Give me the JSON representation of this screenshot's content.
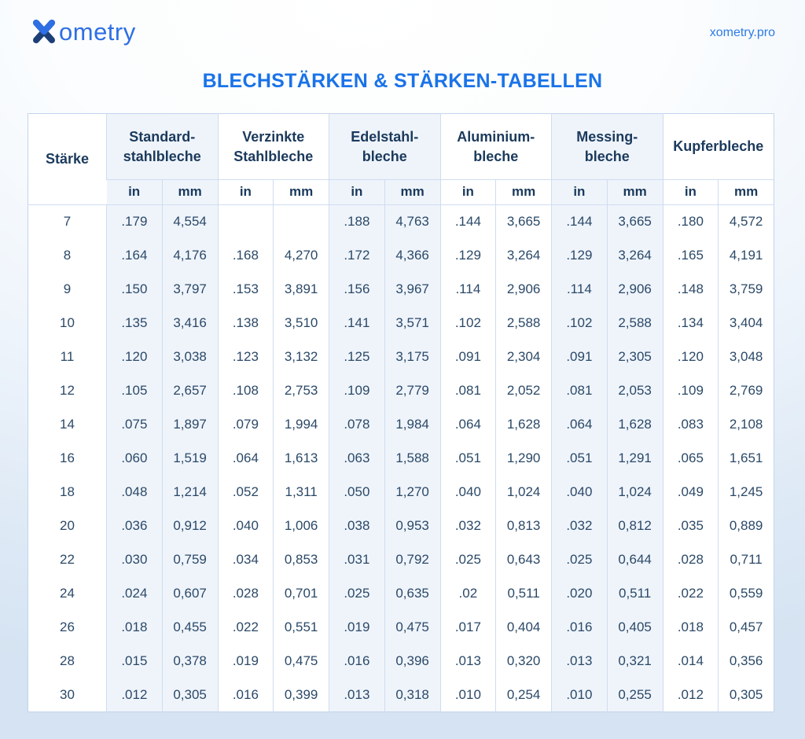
{
  "brand": {
    "logo_x": "X",
    "logo_text": "ometry",
    "site": "xometry.pro"
  },
  "title": "BLECHSTÄRKEN & STÄRKEN-TABELLEN",
  "colors": {
    "accent_blue": "#1a73e8",
    "link_blue": "#2e7be5",
    "header_navy": "#1b3a5c",
    "data_navy": "#2b4968",
    "tint_bg": "#eff4fb",
    "border": "#cfdcf0",
    "logo_blue": "#2e6fe4",
    "logo_navy": "#1d3f77"
  },
  "table": {
    "gauge_header": "Stärke",
    "unit_headers": [
      "in",
      "mm"
    ],
    "materials": [
      {
        "name": "Standard-stahlbleche",
        "line1": "Standard-",
        "line2": "stahlbleche",
        "tinted": true
      },
      {
        "name": "Verzinkte Stahlbleche",
        "line1": "Verzinkte",
        "line2": "Stahlbleche",
        "tinted": false
      },
      {
        "name": "Edelstahl-bleche",
        "line1": "Edelstahl-",
        "line2": "bleche",
        "tinted": true
      },
      {
        "name": "Aluminium-bleche",
        "line1": "Aluminium-",
        "line2": "bleche",
        "tinted": false
      },
      {
        "name": "Messing-bleche",
        "line1": "Messing-",
        "line2": "bleche",
        "tinted": true
      },
      {
        "name": "Kupferbleche",
        "line1": "Kupferbleche",
        "line2": "",
        "tinted": false
      }
    ],
    "rows": [
      {
        "gauge": "7",
        "values": [
          ".179",
          "4,554",
          "",
          "",
          ".188",
          "4,763",
          ".144",
          "3,665",
          ".144",
          "3,665",
          ".180",
          "4,572"
        ]
      },
      {
        "gauge": "8",
        "values": [
          ".164",
          "4,176",
          ".168",
          "4,270",
          ".172",
          "4,366",
          ".129",
          "3,264",
          ".129",
          "3,264",
          ".165",
          "4,191"
        ]
      },
      {
        "gauge": "9",
        "values": [
          ".150",
          "3,797",
          ".153",
          "3,891",
          ".156",
          "3,967",
          ".114",
          "2,906",
          ".114",
          "2,906",
          ".148",
          "3,759"
        ]
      },
      {
        "gauge": "10",
        "values": [
          ".135",
          "3,416",
          ".138",
          "3,510",
          ".141",
          "3,571",
          ".102",
          "2,588",
          ".102",
          "2,588",
          ".134",
          "3,404"
        ]
      },
      {
        "gauge": "11",
        "values": [
          ".120",
          "3,038",
          ".123",
          "3,132",
          ".125",
          "3,175",
          ".091",
          "2,304",
          ".091",
          "2,305",
          ".120",
          "3,048"
        ]
      },
      {
        "gauge": "12",
        "values": [
          ".105",
          "2,657",
          ".108",
          "2,753",
          ".109",
          "2,779",
          ".081",
          "2,052",
          ".081",
          "2,053",
          ".109",
          "2,769"
        ]
      },
      {
        "gauge": "14",
        "values": [
          ".075",
          "1,897",
          ".079",
          "1,994",
          ".078",
          "1,984",
          ".064",
          "1,628",
          ".064",
          "1,628",
          ".083",
          "2,108"
        ]
      },
      {
        "gauge": "16",
        "values": [
          ".060",
          "1,519",
          ".064",
          "1,613",
          ".063",
          "1,588",
          ".051",
          "1,290",
          ".051",
          "1,291",
          ".065",
          "1,651"
        ]
      },
      {
        "gauge": "18",
        "values": [
          ".048",
          "1,214",
          ".052",
          "1,311",
          ".050",
          "1,270",
          ".040",
          "1,024",
          ".040",
          "1,024",
          ".049",
          "1,245"
        ]
      },
      {
        "gauge": "20",
        "values": [
          ".036",
          "0,912",
          ".040",
          "1,006",
          ".038",
          "0,953",
          ".032",
          "0,813",
          ".032",
          "0,812",
          ".035",
          "0,889"
        ]
      },
      {
        "gauge": "22",
        "values": [
          ".030",
          "0,759",
          ".034",
          "0,853",
          ".031",
          "0,792",
          ".025",
          "0,643",
          ".025",
          "0,644",
          ".028",
          "0,711"
        ]
      },
      {
        "gauge": "24",
        "values": [
          ".024",
          "0,607",
          ".028",
          "0,701",
          ".025",
          "0,635",
          ".02",
          "0,511",
          ".020",
          "0,511",
          ".022",
          "0,559"
        ]
      },
      {
        "gauge": "26",
        "values": [
          ".018",
          "0,455",
          ".022",
          "0,551",
          ".019",
          "0,475",
          ".017",
          "0,404",
          ".016",
          "0,405",
          ".018",
          "0,457"
        ]
      },
      {
        "gauge": "28",
        "values": [
          ".015",
          "0,378",
          ".019",
          "0,475",
          ".016",
          "0,396",
          ".013",
          "0,320",
          ".013",
          "0,321",
          ".014",
          "0,356"
        ]
      },
      {
        "gauge": "30",
        "values": [
          ".012",
          "0,305",
          ".016",
          "0,399",
          ".013",
          "0,318",
          ".010",
          "0,254",
          ".010",
          "0,255",
          ".012",
          "0,305"
        ]
      }
    ]
  }
}
